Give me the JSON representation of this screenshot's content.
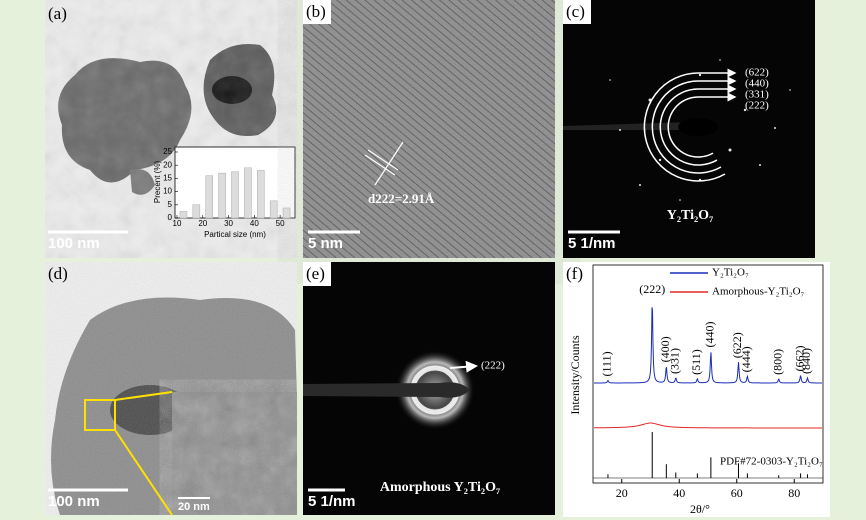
{
  "panels": {
    "a": {
      "label": "(a)",
      "scale_bar": "100 nm",
      "inset": {
        "x_label": "Partical size (nm)",
        "y_label": "Precent (%)",
        "x": [
          12.5,
          17.5,
          22.5,
          27.5,
          32.5,
          37.5,
          42.5,
          47.5,
          52.5
        ],
        "values": [
          2.5,
          5,
          16,
          17,
          17.5,
          19,
          18,
          6.5,
          3.8
        ],
        "xlim": [
          10,
          55
        ],
        "ylim": [
          0,
          25
        ],
        "xticks": [
          10,
          20,
          30,
          40,
          50
        ],
        "yticks": [
          0,
          5,
          10,
          15,
          20,
          25
        ]
      }
    },
    "b": {
      "label": "(b)",
      "scale_bar": "5 nm",
      "annotation": "d222=2.91Å"
    },
    "c": {
      "label": "(c)",
      "scale_bar": "5 1/nm",
      "rings": [
        "(622)",
        "(440)",
        "(331)",
        "(222)"
      ],
      "caption": "Y₂Ti₂O₇"
    },
    "d": {
      "label": "(d)",
      "scale_bar": "100 nm",
      "inset_scale_bar": "20 nm"
    },
    "e": {
      "label": "(e)",
      "scale_bar": "5 1/nm",
      "ring": "(222)",
      "caption": "Amorphous Y₂Ti₂O₇"
    },
    "f": {
      "label": "(f)",
      "x_label": "2θ/°",
      "y_label": "Intensity/Counts",
      "xlim": [
        10,
        90
      ],
      "xticks": [
        20,
        40,
        60,
        80
      ],
      "series": [
        {
          "name": "Y₂Ti₂O₇",
          "color": "#1a2db8"
        },
        {
          "name": "Amorphous-Y₂Ti₂O₇",
          "color": "#e02828"
        }
      ],
      "amorphous_hump": {
        "two_theta": 30,
        "intensity": 6
      },
      "reference": "PDF#72-0303-Y₂Ti₂O₇",
      "reference_color": "#000000",
      "peaks": [
        {
          "label": "(111)",
          "two_theta": 15.2,
          "intensity": 3,
          "ref_intensity": 8
        },
        {
          "label": "(222)",
          "two_theta": 30.6,
          "intensity": 100,
          "ref_intensity": 100
        },
        {
          "label": "(400)",
          "two_theta": 35.5,
          "intensity": 20,
          "ref_intensity": 30
        },
        {
          "label": "(331)",
          "two_theta": 38.8,
          "intensity": 6,
          "ref_intensity": 12
        },
        {
          "label": "(511)",
          "two_theta": 46.3,
          "intensity": 5,
          "ref_intensity": 10
        },
        {
          "label": "(440)",
          "two_theta": 51.0,
          "intensity": 38,
          "ref_intensity": 45
        },
        {
          "label": "(622)",
          "two_theta": 60.6,
          "intensity": 25,
          "ref_intensity": 32
        },
        {
          "label": "(444)",
          "two_theta": 63.7,
          "intensity": 8,
          "ref_intensity": 10
        },
        {
          "label": "(800)",
          "two_theta": 74.6,
          "intensity": 5,
          "ref_intensity": 6
        },
        {
          "label": "(662)",
          "two_theta": 82.2,
          "intensity": 9,
          "ref_intensity": 10
        },
        {
          "label": "(840)",
          "two_theta": 84.6,
          "intensity": 6,
          "ref_intensity": 8
        }
      ]
    }
  }
}
